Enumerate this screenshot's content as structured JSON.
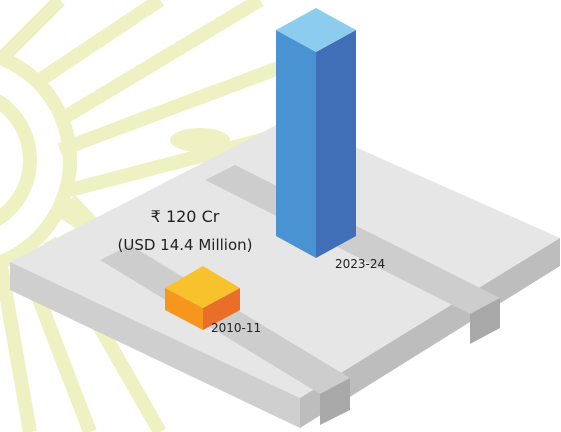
{
  "labels": {
    "value_line1": "₹ 120 Cr",
    "value_line2": "(USD 14.4 Million)",
    "bar_2023": "2023-24",
    "bar_2010": "2010-11"
  }
}
